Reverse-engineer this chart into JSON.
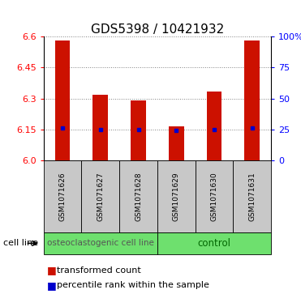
{
  "title": "GDS5398 / 10421932",
  "samples": [
    "GSM1071626",
    "GSM1071627",
    "GSM1071628",
    "GSM1071629",
    "GSM1071630",
    "GSM1071631"
  ],
  "red_values": [
    6.58,
    6.32,
    6.29,
    6.165,
    6.335,
    6.58
  ],
  "blue_values": [
    6.155,
    6.148,
    6.147,
    6.145,
    6.148,
    6.155
  ],
  "ymin": 6.0,
  "ymax": 6.6,
  "yticks": [
    6.0,
    6.15,
    6.3,
    6.45,
    6.6
  ],
  "right_yticks": [
    0,
    25,
    50,
    75,
    100
  ],
  "right_ytick_labels": [
    "0",
    "25",
    "50",
    "75",
    "100%"
  ],
  "bar_color": "#CC1100",
  "blue_color": "#0000CC",
  "bar_width": 0.4,
  "bg_color_label": "#C8C8C8",
  "green_color": "#6EE06E",
  "title_fontsize": 11,
  "tick_fontsize": 8,
  "sample_fontsize": 6.5,
  "group_fontsize": 7.5,
  "legend_fontsize": 8,
  "cell_line_fontsize": 8,
  "group_label_color_1": "#555555",
  "group_label_color_2": "#006600"
}
